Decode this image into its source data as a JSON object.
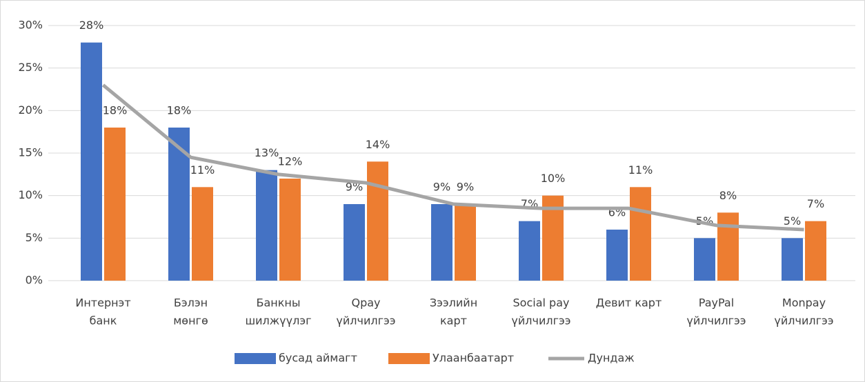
{
  "chart_data": {
    "type": "bar_line",
    "categories": [
      [
        "Интернэт",
        "банк"
      ],
      [
        "Бэлэн",
        "мөнгө"
      ],
      [
        "Банкны",
        "шилжүүлэг"
      ],
      [
        "Qpay",
        "үйлчилгээ"
      ],
      [
        "Зээлийн",
        "карт"
      ],
      [
        "Social pay",
        "үйлчилгээ"
      ],
      [
        "Девит карт"
      ],
      [
        "PayPal",
        "үйлчилгээ"
      ],
      [
        "Monpay",
        "үйлчилгээ"
      ]
    ],
    "series": [
      {
        "name": "бусад аймагт",
        "type": "bar",
        "color": "#4472c4",
        "values": [
          28,
          18,
          13,
          9,
          9,
          7,
          6,
          5,
          5
        ],
        "value_labels": [
          "28%",
          "18%",
          "13%",
          "9%",
          "9%",
          "7%",
          "6%",
          "5%",
          "5%"
        ]
      },
      {
        "name": "Улаанбаатарт",
        "type": "bar",
        "color": "#ed7d31",
        "values": [
          18,
          11,
          12,
          14,
          9,
          10,
          11,
          8,
          7
        ],
        "value_labels": [
          "18%",
          "11%",
          "12%",
          "14%",
          "9%",
          "10%",
          "11%",
          "8%",
          "7%"
        ]
      },
      {
        "name": "Дундаж",
        "type": "line",
        "color": "#a5a5a5",
        "values": [
          23,
          14.5,
          12.5,
          11.5,
          9,
          8.5,
          8.5,
          6.5,
          6
        ]
      }
    ],
    "ylim": [
      0,
      30
    ],
    "yticks": [
      {
        "value": 0,
        "label": "0%"
      },
      {
        "value": 5,
        "label": "5%"
      },
      {
        "value": 10,
        "label": "10%"
      },
      {
        "value": 15,
        "label": "15%"
      },
      {
        "value": 20,
        "label": "20%"
      },
      {
        "value": 25,
        "label": "25%"
      },
      {
        "value": 30,
        "label": "30%"
      }
    ],
    "grid": true,
    "legend": "bottom"
  }
}
